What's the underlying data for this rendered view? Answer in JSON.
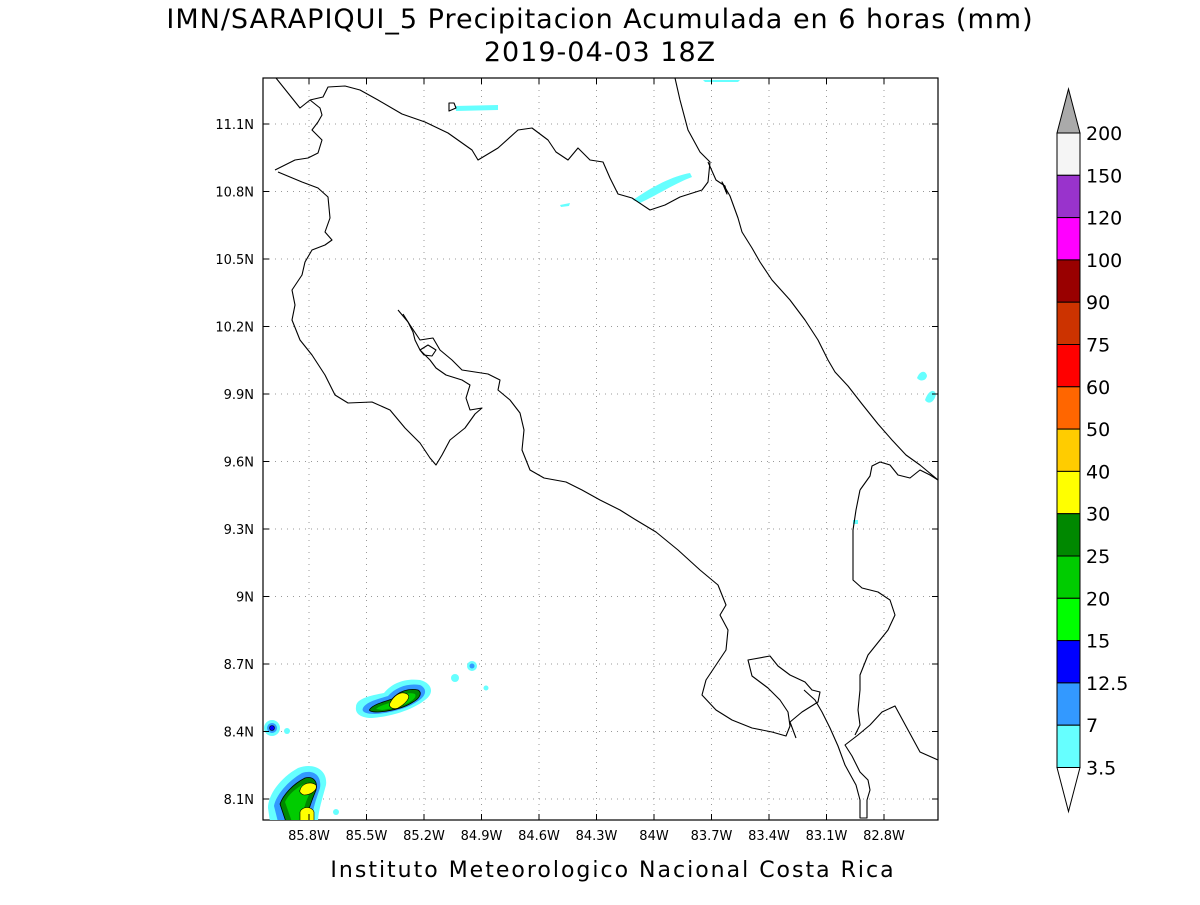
{
  "title": {
    "line1": "IMN/SARAPIQUI_5 Precipitacion Acumulada en 6 horas (mm)",
    "line2": "2019-04-03 18Z"
  },
  "footer": "Instituto Meteorologico Nacional Costa Rica",
  "axes": {
    "lon_ticks": [
      "85.8W",
      "85.5W",
      "85.2W",
      "84.9W",
      "84.6W",
      "84.3W",
      "84W",
      "83.7W",
      "83.4W",
      "83.1W",
      "82.8W"
    ],
    "lat_ticks": [
      "11.1N",
      "10.8N",
      "10.5N",
      "10.2N",
      "9.9N",
      "9.6N",
      "9.3N",
      "9N",
      "8.7N",
      "8.4N",
      "8.1N"
    ],
    "grid": "dotted"
  },
  "colorbar": {
    "levels": [
      "3.5",
      "7",
      "12.5",
      "15",
      "20",
      "25",
      "30",
      "40",
      "50",
      "60",
      "75",
      "90",
      "100",
      "120",
      "150",
      "200"
    ],
    "colors": [
      "#66ffff",
      "#3399ff",
      "#0000ff",
      "#00ff00",
      "#00cc00",
      "#008800",
      "#ffff00",
      "#ffcc00",
      "#ff6600",
      "#ff0000",
      "#cc3300",
      "#990000",
      "#ff00ff",
      "#9933cc",
      "#f5f5f5",
      "#aaaaaa"
    ],
    "below_color": "#ffffff",
    "above_color": "#aaaaaa"
  }
}
